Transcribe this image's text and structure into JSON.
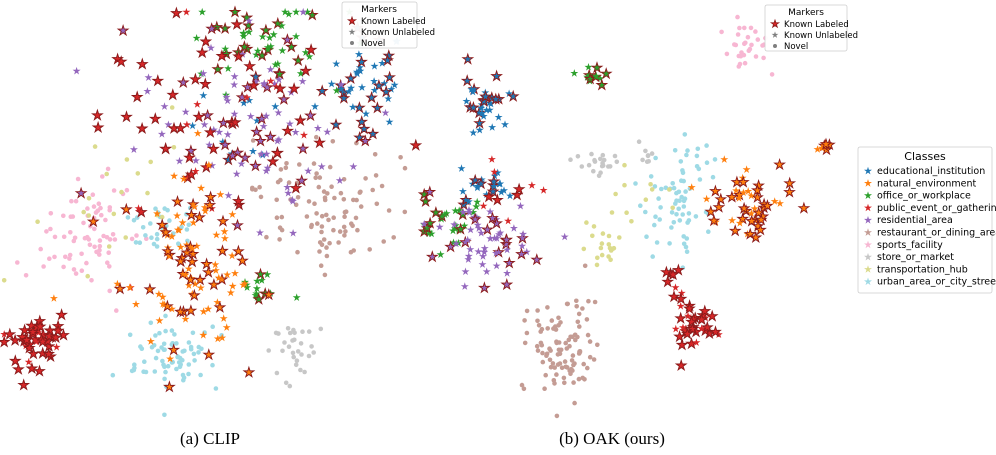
{
  "figure": {
    "panels": [
      {
        "caption": "(a) CLIP"
      },
      {
        "caption": "(b) OAK (ours)"
      }
    ],
    "markers_legend": {
      "title": "Markers",
      "entries": [
        {
          "label": "Known Labeled",
          "shape": "star-outlined",
          "color": "#d62728"
        },
        {
          "label": "Known Unlabeled",
          "shape": "star",
          "color": "#7f7f7f"
        },
        {
          "label": "Novel",
          "shape": "dot",
          "color": "#7f7f7f"
        }
      ]
    },
    "classes_legend": {
      "title": "Classes",
      "entries": [
        {
          "label": "educational_institution",
          "color": "#1f77b4",
          "shape": "star"
        },
        {
          "label": "natural_environment",
          "color": "#ff7f0e",
          "shape": "star"
        },
        {
          "label": "office_or_workplace",
          "color": "#2ca02c",
          "shape": "star"
        },
        {
          "label": "public_event_or_gathering",
          "color": "#d62728",
          "shape": "star"
        },
        {
          "label": "residential_area",
          "color": "#9467bd",
          "shape": "star"
        },
        {
          "label": "restaurant_or_dining_area",
          "color": "#c49c94",
          "shape": "dot"
        },
        {
          "label": "sports_facility",
          "color": "#f7b6d2",
          "shape": "dot"
        },
        {
          "label": "store_or_market",
          "color": "#c7c7c7",
          "shape": "dot"
        },
        {
          "label": "transportation_hub",
          "color": "#dbdb8d",
          "shape": "dot"
        },
        {
          "label": "urban_area_or_city_street",
          "color": "#9edae5",
          "shape": "dot"
        }
      ]
    }
  },
  "chart_data": [
    {
      "type": "scatter",
      "caption": "(a) CLIP",
      "xlim": [
        0,
        100
      ],
      "ylim": [
        0,
        100
      ],
      "axes_visible": false,
      "clusters": [
        {
          "class": "educational_institution",
          "marker": "star",
          "center": [
            87,
            83
          ],
          "spread": [
            5,
            6
          ],
          "count": 45,
          "labeled_fraction": 0.4
        },
        {
          "class": "educational_institution",
          "marker": "star",
          "center": [
            60,
            70
          ],
          "spread": [
            8,
            8
          ],
          "count": 15,
          "labeled_fraction": 0.3
        },
        {
          "class": "office_or_workplace",
          "marker": "star",
          "center": [
            62,
            91
          ],
          "spread": [
            9,
            5
          ],
          "count": 50,
          "labeled_fraction": 0.3
        },
        {
          "class": "office_or_workplace",
          "marker": "star",
          "center": [
            62,
            33
          ],
          "spread": [
            3,
            3
          ],
          "count": 15,
          "labeled_fraction": 0.3
        },
        {
          "class": "residential_area",
          "marker": "star",
          "center": [
            60,
            72
          ],
          "spread": [
            12,
            11
          ],
          "count": 90,
          "labeled_fraction": 0.25
        },
        {
          "class": "public_event_or_gathering",
          "marker": "star",
          "center": [
            7,
            19
          ],
          "spread": [
            3.5,
            4
          ],
          "count": 50,
          "labeled_fraction": 0.8
        },
        {
          "class": "public_event_or_gathering",
          "marker": "star",
          "center": [
            48,
            72
          ],
          "spread": [
            16,
            14
          ],
          "count": 60,
          "labeled_fraction": 0.8
        },
        {
          "class": "natural_environment",
          "marker": "star",
          "center": [
            45,
            38
          ],
          "spread": [
            8,
            10
          ],
          "count": 110,
          "labeled_fraction": 0.4
        },
        {
          "class": "restaurant_or_dining_area",
          "marker": "dot",
          "center": [
            76,
            52
          ],
          "spread": [
            8,
            8
          ],
          "count": 100
        },
        {
          "class": "sports_facility",
          "marker": "dot",
          "center": [
            21,
            46
          ],
          "spread": [
            5,
            7
          ],
          "count": 75
        },
        {
          "class": "urban_area_or_city_street",
          "marker": "dot",
          "center": [
            41,
            15
          ],
          "spread": [
            5,
            5
          ],
          "count": 70
        },
        {
          "class": "urban_area_or_city_street",
          "marker": "dot",
          "center": [
            38,
            48
          ],
          "spread": [
            4,
            4
          ],
          "count": 30
        },
        {
          "class": "store_or_market",
          "marker": "dot",
          "center": [
            70,
            18
          ],
          "spread": [
            3,
            4
          ],
          "count": 30
        },
        {
          "class": "transportation_hub",
          "marker": "dot",
          "center": [
            28,
            52
          ],
          "spread": [
            10,
            10
          ],
          "count": 20
        }
      ]
    },
    {
      "type": "scatter",
      "caption": "(b) OAK (ours)",
      "xlim": [
        0,
        100
      ],
      "ylim": [
        0,
        100
      ],
      "axes_visible": false,
      "clusters": [
        {
          "class": "sports_facility",
          "marker": "dot",
          "center": [
            77,
            91
          ],
          "spread": [
            3,
            3
          ],
          "count": 30
        },
        {
          "class": "educational_institution",
          "marker": "star",
          "center": [
            16,
            77
          ],
          "spread": [
            3,
            3
          ],
          "count": 35,
          "labeled_fraction": 0.4
        },
        {
          "class": "educational_institution",
          "marker": "star",
          "center": [
            15,
            57
          ],
          "spread": [
            3,
            2.5
          ],
          "count": 25,
          "labeled_fraction": 0.4
        },
        {
          "class": "office_or_workplace",
          "marker": "star",
          "center": [
            40,
            83
          ],
          "spread": [
            2,
            1
          ],
          "count": 12,
          "labeled_fraction": 0.4
        },
        {
          "class": "office_or_workplace",
          "marker": "star",
          "center": [
            7,
            48
          ],
          "spread": [
            4,
            3
          ],
          "count": 30,
          "labeled_fraction": 0.3
        },
        {
          "class": "residential_area",
          "marker": "star",
          "center": [
            17,
            43
          ],
          "spread": [
            7,
            5
          ],
          "count": 60,
          "labeled_fraction": 0.25
        },
        {
          "class": "public_event_or_gathering",
          "marker": "star",
          "center": [
            66,
            22
          ],
          "spread": [
            3,
            3
          ],
          "count": 30,
          "labeled_fraction": 0.8
        },
        {
          "class": "public_event_or_gathering",
          "marker": "star",
          "center": [
            60,
            32
          ],
          "spread": [
            2.5,
            4
          ],
          "count": 12,
          "labeled_fraction": 0.8
        },
        {
          "class": "public_event_or_gathering",
          "marker": "star",
          "center": [
            20,
            55
          ],
          "spread": [
            5,
            3
          ],
          "count": 10,
          "labeled_fraction": 0.8
        },
        {
          "class": "natural_environment",
          "marker": "star",
          "center": [
            79,
            52
          ],
          "spread": [
            6,
            5
          ],
          "count": 50,
          "labeled_fraction": 0.5
        },
        {
          "class": "natural_environment",
          "marker": "star",
          "center": [
            97,
            66
          ],
          "spread": [
            1,
            1
          ],
          "count": 8,
          "labeled_fraction": 0.5
        },
        {
          "class": "urban_area_or_city_street",
          "marker": "dot",
          "center": [
            62,
            54
          ],
          "spread": [
            4,
            7
          ],
          "count": 70
        },
        {
          "class": "restaurant_or_dining_area",
          "marker": "dot",
          "center": [
            34,
            17
          ],
          "spread": [
            4,
            6
          ],
          "count": 100
        },
        {
          "class": "store_or_market",
          "marker": "dot",
          "center": [
            41,
            63
          ],
          "spread": [
            3,
            2
          ],
          "count": 20
        },
        {
          "class": "store_or_market",
          "marker": "dot",
          "center": [
            54,
            65
          ],
          "spread": [
            1,
            2
          ],
          "count": 8
        },
        {
          "class": "transportation_hub",
          "marker": "dot",
          "center": [
            43,
            42
          ],
          "spread": [
            3,
            3
          ],
          "count": 18
        },
        {
          "class": "transportation_hub",
          "marker": "dot",
          "center": [
            50,
            55
          ],
          "spread": [
            6,
            6
          ],
          "count": 12
        }
      ]
    }
  ]
}
